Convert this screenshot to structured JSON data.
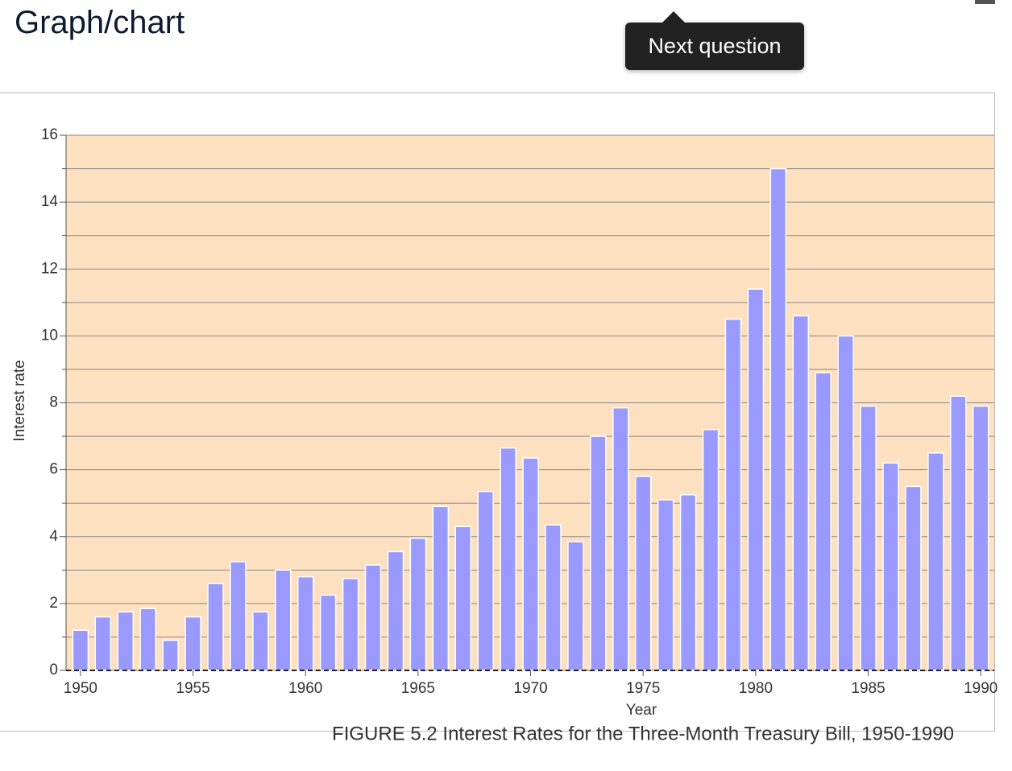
{
  "header": {
    "title": "Graph/chart"
  },
  "tooltip": {
    "label": "Next question"
  },
  "chart_data": {
    "type": "bar",
    "caption": "FIGURE 5.2 Interest Rates for the Three-Month Treasury Bill, 1950-1990",
    "x_label": "Year",
    "y_label": "Interest rate",
    "x": [
      1950,
      1951,
      1952,
      1953,
      1954,
      1955,
      1956,
      1957,
      1958,
      1959,
      1960,
      1961,
      1962,
      1963,
      1964,
      1965,
      1966,
      1967,
      1968,
      1969,
      1970,
      1971,
      1972,
      1973,
      1974,
      1975,
      1976,
      1977,
      1978,
      1979,
      1980,
      1981,
      1982,
      1983,
      1984,
      1985,
      1986,
      1987,
      1988,
      1989,
      1990
    ],
    "values": [
      1.2,
      1.6,
      1.75,
      1.85,
      0.9,
      1.6,
      2.6,
      3.25,
      1.75,
      3.0,
      2.8,
      2.25,
      2.75,
      3.15,
      3.55,
      3.95,
      4.9,
      4.3,
      5.35,
      6.65,
      6.35,
      4.35,
      3.85,
      7.0,
      7.85,
      5.8,
      5.1,
      5.25,
      7.2,
      10.5,
      11.4,
      15.0,
      10.6,
      8.9,
      10.0,
      7.9,
      6.2,
      5.5,
      6.5,
      8.2,
      7.9
    ],
    "color": "#9999ff",
    "background": "#fde0c0",
    "xlim": [
      1949.36,
      1990.6
    ],
    "xticks": [
      1950,
      1955,
      1960,
      1965,
      1970,
      1975,
      1980,
      1985,
      1990
    ],
    "ylim": [
      0,
      16
    ],
    "yticks": [
      0,
      2,
      4,
      6,
      8,
      10,
      12,
      14,
      16
    ],
    "yminorticks": [
      1,
      3,
      5,
      7,
      9,
      11,
      13,
      15
    ],
    "grid": true
  }
}
